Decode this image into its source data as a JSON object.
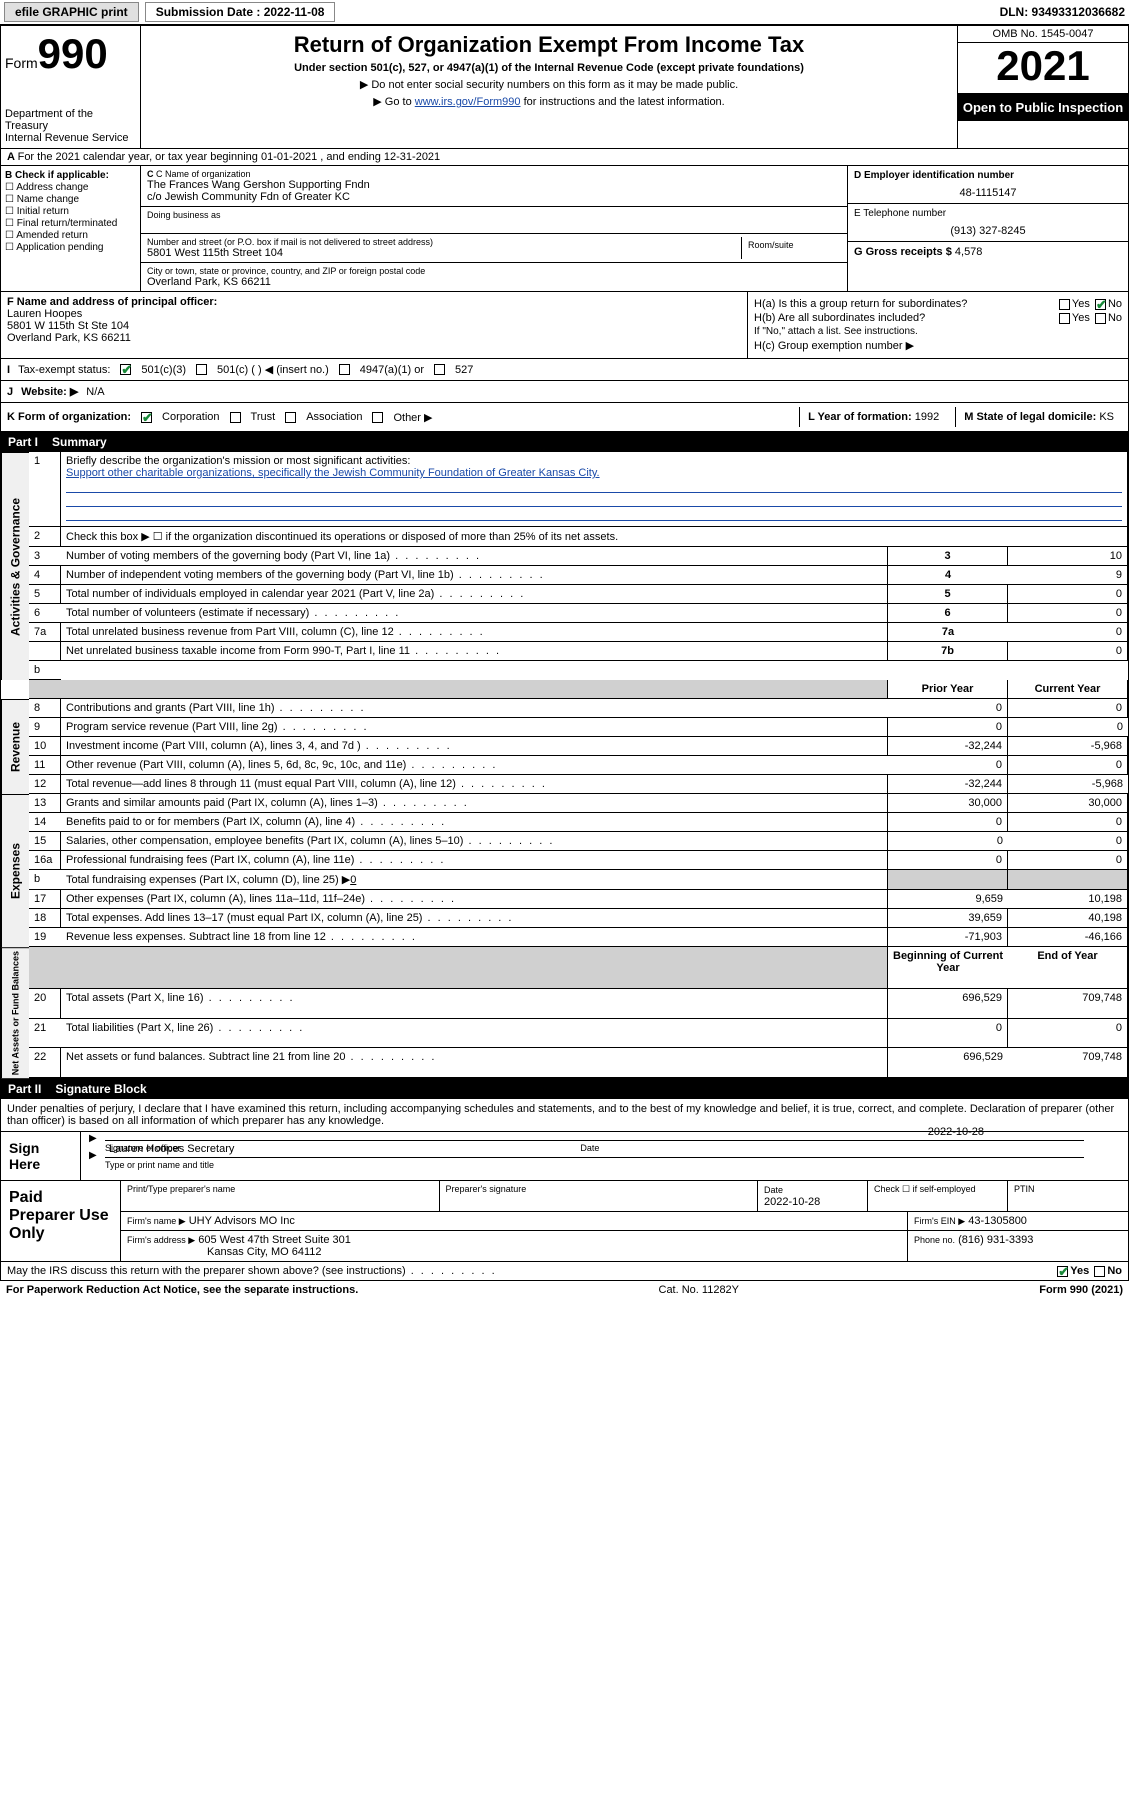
{
  "topbar": {
    "efile_label": "efile GRAPHIC print",
    "submission_label": "Submission Date : 2022-11-08",
    "dln": "DLN: 93493312036682"
  },
  "header": {
    "form_label": "Form",
    "form_number": "990",
    "dept": "Department of the Treasury",
    "irs": "Internal Revenue Service",
    "title": "Return of Organization Exempt From Income Tax",
    "subtitle": "Under section 501(c), 527, or 4947(a)(1) of the Internal Revenue Code (except private foundations)",
    "note1": "▶ Do not enter social security numbers on this form as it may be made public.",
    "note2_pre": "▶ Go to ",
    "note2_link": "www.irs.gov/Form990",
    "note2_post": " for instructions and the latest information.",
    "omb": "OMB No. 1545-0047",
    "year": "2021",
    "inspect": "Open to Public Inspection"
  },
  "line_a": "For the 2021 calendar year, or tax year beginning 01-01-2021   , and ending 12-31-2021",
  "section_b": {
    "label": "B Check if applicable:",
    "opts": [
      "Address change",
      "Name change",
      "Initial return",
      "Final return/terminated",
      "Amended return",
      "Application pending"
    ]
  },
  "section_c": {
    "name_label": "C Name of organization",
    "org_name": "The Frances Wang Gershon Supporting Fndn",
    "org_co": "c/o Jewish Community Fdn of Greater KC",
    "dba_label": "Doing business as",
    "addr_label": "Number and street (or P.O. box if mail is not delivered to street address)",
    "room_label": "Room/suite",
    "street": "5801 West 115th Street 104",
    "city_label": "City or town, state or province, country, and ZIP or foreign postal code",
    "city": "Overland Park, KS  66211",
    "officer_label": "F Name and address of principal officer:",
    "officer_name": "Lauren Hoopes",
    "officer_addr1": "5801 W 115th St Ste 104",
    "officer_addr2": "Overland Park, KS  66211"
  },
  "section_d": {
    "ein_label": "D Employer identification number",
    "ein": "48-1115147",
    "tel_label": "E Telephone number",
    "tel": "(913) 327-8245",
    "gross_label": "G Gross receipts $",
    "gross": "4,578"
  },
  "section_h": {
    "ha": "H(a)  Is this a group return for subordinates?",
    "hb": "H(b)  Are all subordinates included?",
    "hb_note": "If \"No,\" attach a list. See instructions.",
    "hc": "H(c)  Group exemption number ▶",
    "yes": "Yes",
    "no": "No"
  },
  "line_i": {
    "label": "Tax-exempt status:",
    "o1": "501(c)(3)",
    "o2": "501(c) (   ) ◀ (insert no.)",
    "o3": "4947(a)(1) or",
    "o4": "527"
  },
  "line_j": {
    "label": "Website: ▶",
    "val": "N/A"
  },
  "line_k": {
    "label": "K Form of organization:",
    "o1": "Corporation",
    "o2": "Trust",
    "o3": "Association",
    "o4": "Other ▶",
    "l_label": "L Year of formation:",
    "l_val": "1992",
    "m_label": "M State of legal domicile:",
    "m_val": "KS"
  },
  "part1": {
    "header_num": "Part I",
    "header_title": "Summary",
    "q1_label": "1",
    "q1": "Briefly describe the organization's mission or most significant activities:",
    "q1_text": "Support other charitable organizations, specifically the Jewish Community Foundation of Greater Kansas City.",
    "q2_label": "2",
    "q2": "Check this box ▶ ☐  if the organization discontinued its operations or disposed of more than 25% of its net assets.",
    "vlabel_gov": "Activities & Governance",
    "vlabel_rev": "Revenue",
    "vlabel_exp": "Expenses",
    "vlabel_net": "Net Assets or Fund Balances",
    "prior_hdr": "Prior Year",
    "current_hdr": "Current Year",
    "begin_hdr": "Beginning of Current Year",
    "end_hdr": "End of Year",
    "rows_single": [
      {
        "n": "3",
        "t": "Number of voting members of the governing body (Part VI, line 1a)",
        "box": "3",
        "v": "10"
      },
      {
        "n": "4",
        "t": "Number of independent voting members of the governing body (Part VI, line 1b)",
        "box": "4",
        "v": "9"
      },
      {
        "n": "5",
        "t": "Total number of individuals employed in calendar year 2021 (Part V, line 2a)",
        "box": "5",
        "v": "0"
      },
      {
        "n": "6",
        "t": "Total number of volunteers (estimate if necessary)",
        "box": "6",
        "v": "0"
      },
      {
        "n": "7a",
        "t": "Total unrelated business revenue from Part VIII, column (C), line 12",
        "box": "7a",
        "v": "0"
      },
      {
        "n": "",
        "t": "Net unrelated business taxable income from Form 990-T, Part I, line 11",
        "box": "7b",
        "v": "0"
      }
    ],
    "rows_rev": [
      {
        "n": "8",
        "t": "Contributions and grants (Part VIII, line 1h)",
        "p": "0",
        "c": "0"
      },
      {
        "n": "9",
        "t": "Program service revenue (Part VIII, line 2g)",
        "p": "0",
        "c": "0"
      },
      {
        "n": "10",
        "t": "Investment income (Part VIII, column (A), lines 3, 4, and 7d )",
        "p": "-32,244",
        "c": "-5,968"
      },
      {
        "n": "11",
        "t": "Other revenue (Part VIII, column (A), lines 5, 6d, 8c, 9c, 10c, and 11e)",
        "p": "0",
        "c": "0"
      },
      {
        "n": "12",
        "t": "Total revenue—add lines 8 through 11 (must equal Part VIII, column (A), line 12)",
        "p": "-32,244",
        "c": "-5,968"
      }
    ],
    "rows_exp": [
      {
        "n": "13",
        "t": "Grants and similar amounts paid (Part IX, column (A), lines 1–3)",
        "p": "30,000",
        "c": "30,000"
      },
      {
        "n": "14",
        "t": "Benefits paid to or for members (Part IX, column (A), line 4)",
        "p": "0",
        "c": "0"
      },
      {
        "n": "15",
        "t": "Salaries, other compensation, employee benefits (Part IX, column (A), lines 5–10)",
        "p": "0",
        "c": "0"
      },
      {
        "n": "16a",
        "t": "Professional fundraising fees (Part IX, column (A), line 11e)",
        "p": "0",
        "c": "0"
      }
    ],
    "row_16b": {
      "n": "b",
      "t": "Total fundraising expenses (Part IX, column (D), line 25) ▶",
      "v": "0"
    },
    "rows_exp2": [
      {
        "n": "17",
        "t": "Other expenses (Part IX, column (A), lines 11a–11d, 11f–24e)",
        "p": "9,659",
        "c": "10,198"
      },
      {
        "n": "18",
        "t": "Total expenses. Add lines 13–17 (must equal Part IX, column (A), line 25)",
        "p": "39,659",
        "c": "40,198"
      },
      {
        "n": "19",
        "t": "Revenue less expenses. Subtract line 18 from line 12",
        "p": "-71,903",
        "c": "-46,166"
      }
    ],
    "rows_net": [
      {
        "n": "20",
        "t": "Total assets (Part X, line 16)",
        "p": "696,529",
        "c": "709,748"
      },
      {
        "n": "21",
        "t": "Total liabilities (Part X, line 26)",
        "p": "0",
        "c": "0"
      },
      {
        "n": "22",
        "t": "Net assets or fund balances. Subtract line 21 from line 20",
        "p": "696,529",
        "c": "709,748"
      }
    ]
  },
  "part2": {
    "header_num": "Part II",
    "header_title": "Signature Block",
    "decl": "Under penalties of perjury, I declare that I have examined this return, including accompanying schedules and statements, and to the best of my knowledge and belief, it is true, correct, and complete. Declaration of preparer (other than officer) is based on all information of which preparer has any knowledge.",
    "sign_here": "Sign Here",
    "sig_officer": "Signature of officer",
    "sig_date_label": "Date",
    "sig_date": "2022-10-28",
    "officer_name": "Lauren Hoopes  Secretary",
    "type_name": "Type or print name and title",
    "paid_label": "Paid Preparer Use Only",
    "prep_name_label": "Print/Type preparer's name",
    "prep_sig_label": "Preparer's signature",
    "prep_date_label": "Date",
    "prep_date": "2022-10-28",
    "self_emp": "Check ☐ if self-employed",
    "ptin_label": "PTIN",
    "firm_name_label": "Firm's name    ▶",
    "firm_name": "UHY Advisors MO Inc",
    "firm_ein_label": "Firm's EIN ▶",
    "firm_ein": "43-1305800",
    "firm_addr_label": "Firm's address ▶",
    "firm_addr1": "605 West 47th Street Suite 301",
    "firm_addr2": "Kansas City, MO  64112",
    "firm_phone_label": "Phone no.",
    "firm_phone": "(816) 931-3393",
    "discuss": "May the IRS discuss this return with the preparer shown above? (see instructions)",
    "yes": "Yes",
    "no": "No"
  },
  "footer": {
    "pra": "For Paperwork Reduction Act Notice, see the separate instructions.",
    "cat": "Cat. No. 11282Y",
    "form": "Form 990 (2021)"
  }
}
